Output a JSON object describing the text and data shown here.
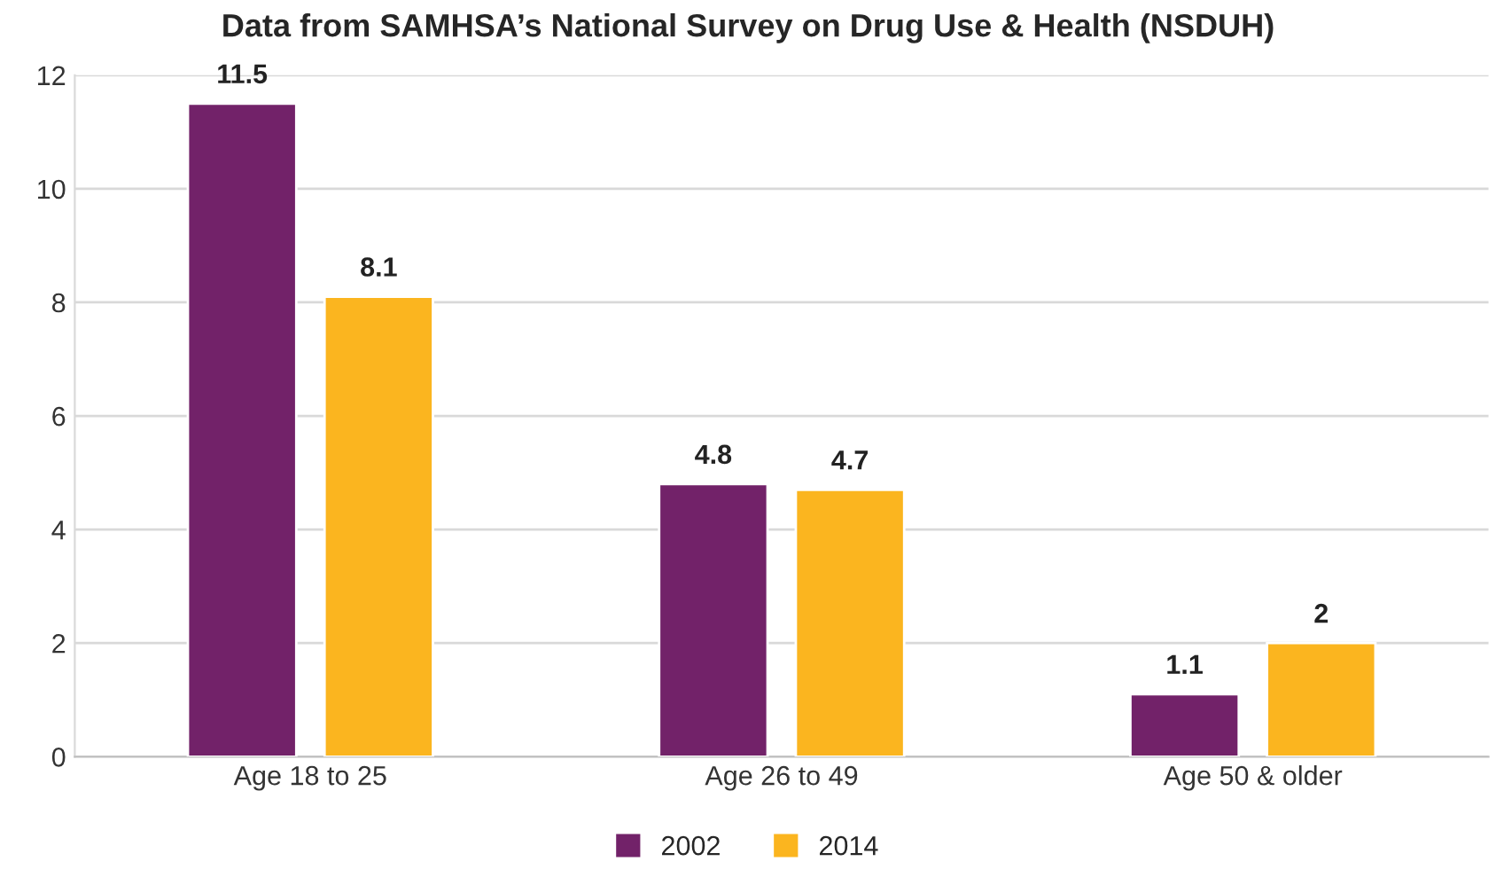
{
  "chart_data": {
    "type": "bar",
    "title": "Data from SAMHSA’s National Survey on Drug Use & Health (NSDUH)",
    "categories": [
      "Age 18 to 25",
      "Age 26 to 49",
      "Age 50 & older"
    ],
    "series": [
      {
        "name": "2002",
        "color": "#722269",
        "values": [
          11.5,
          4.8,
          1.1
        ]
      },
      {
        "name": "2014",
        "color": "#fbb51f",
        "values": [
          8.1,
          4.7,
          2
        ]
      }
    ],
    "ylim": [
      0,
      12
    ],
    "yticks": [
      0,
      2,
      4,
      6,
      8,
      10,
      12
    ],
    "grid": "y",
    "legend": "bottom",
    "data_labels": true
  }
}
